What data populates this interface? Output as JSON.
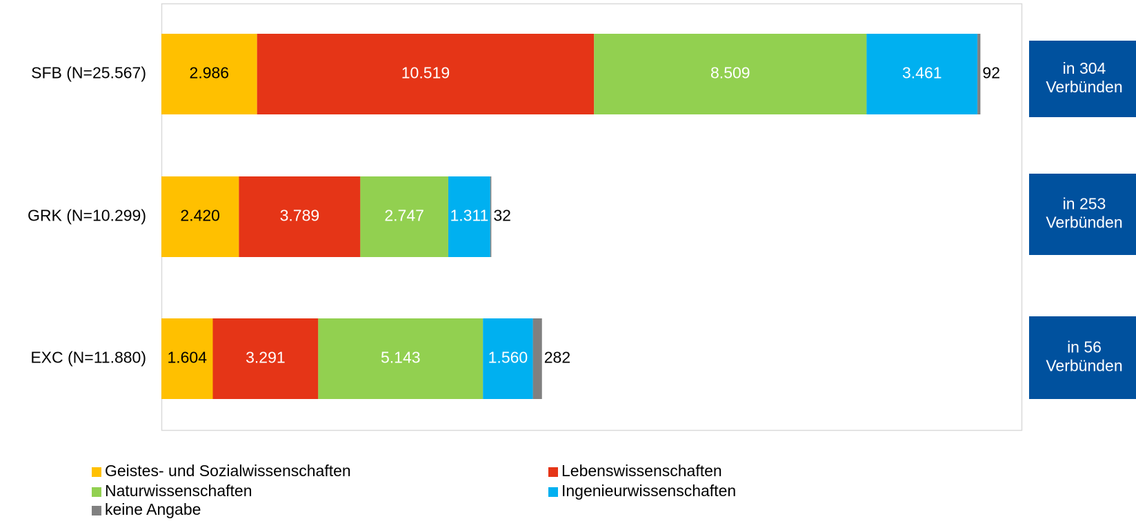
{
  "chart_data": {
    "type": "stacked_barh",
    "categories": [
      "SFB (N=25.567)",
      "GRK (N=10.299)",
      "EXC (N=11.880)"
    ],
    "series": [
      {
        "name": "Geistes- und Sozialwissenschaften",
        "color": "#FFC000",
        "label_color": "#000000",
        "values": [
          2986,
          2420,
          1604
        ],
        "value_labels": [
          "2.986",
          "2.420",
          "1.604"
        ]
      },
      {
        "name": "Lebenswissenschaften",
        "color": "#E53517",
        "label_color": "#FFFFFF",
        "values": [
          10519,
          3789,
          3291
        ],
        "value_labels": [
          "10.519",
          "3.789",
          "3.291"
        ]
      },
      {
        "name": "Naturwissenschaften",
        "color": "#92D050",
        "label_color": "#FFFFFF",
        "values": [
          8509,
          2747,
          5143
        ],
        "value_labels": [
          "8.509",
          "2.747",
          "5.143"
        ]
      },
      {
        "name": "Ingenieurwissenschaften",
        "color": "#00B0F0",
        "label_color": "#FFFFFF",
        "values": [
          3461,
          1311,
          1560
        ],
        "value_labels": [
          "3.461",
          "1.311",
          "1.560"
        ]
      },
      {
        "name": "keine Angabe",
        "color": "#808080",
        "label_color": "#000000",
        "values": [
          92,
          32,
          282
        ]
      }
    ],
    "xlim": [
      0,
      26850
    ],
    "annotations": [
      [
        "in 304",
        "Verbünden"
      ],
      [
        "in 253",
        "Verbünden"
      ],
      [
        "in 56",
        "Verbünden"
      ]
    ],
    "annotation_color": "#00519E"
  }
}
